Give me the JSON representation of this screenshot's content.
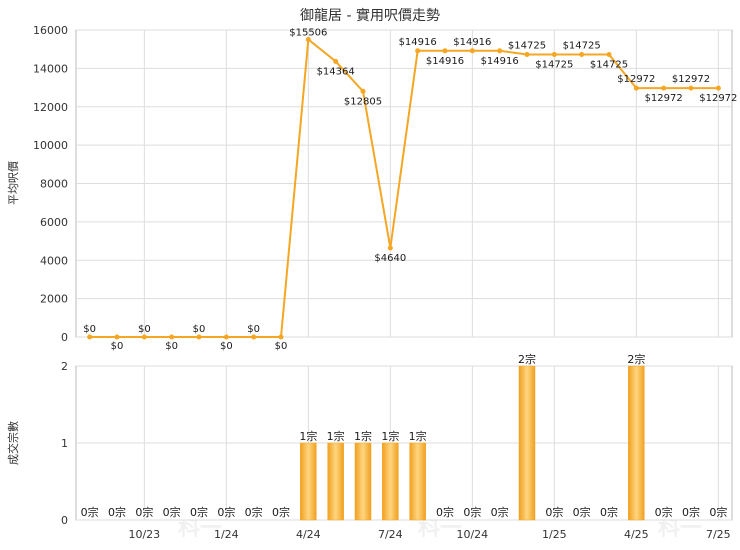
{
  "chart_data": [
    {
      "type": "line",
      "title": "御龍居 - 實用呎價走勢",
      "ylabel": "平均呎價",
      "ylim": [
        0,
        16000
      ],
      "yticks": [
        "0",
        "2000",
        "4000",
        "6000",
        "8000",
        "10000",
        "12000",
        "14000",
        "16000"
      ],
      "grid": true,
      "line_color": "#f5a623",
      "values": [
        0,
        0,
        0,
        0,
        0,
        0,
        0,
        0,
        15506,
        14364,
        12805,
        4640,
        14916,
        14916,
        14916,
        14916,
        14725,
        14725,
        14725,
        14725,
        12972,
        12972,
        12972,
        12972
      ],
      "labels": [
        "$0",
        "$0",
        "$0",
        "$0",
        "$0",
        "$0",
        "$0",
        "$0",
        "$15506",
        "$14364",
        "$12805",
        "$4640",
        "$14916",
        "$14916",
        "$14916",
        "$14916",
        "$14725",
        "$14725",
        "$14725",
        "$14725",
        "$12972",
        "$12972",
        "$12972",
        "$12972"
      ]
    },
    {
      "type": "bar",
      "ylabel": "成交宗數",
      "ylim": [
        0,
        2
      ],
      "yticks": [
        "0",
        "1",
        "2"
      ],
      "grid": true,
      "bar_color": "#f5a623",
      "values": [
        0,
        0,
        0,
        0,
        0,
        0,
        0,
        0,
        1,
        1,
        1,
        1,
        1,
        0,
        0,
        0,
        2,
        0,
        0,
        0,
        2,
        0,
        0,
        0
      ],
      "labels": [
        "0宗",
        "0宗",
        "0宗",
        "0宗",
        "0宗",
        "0宗",
        "0宗",
        "0宗",
        "1宗",
        "1宗",
        "1宗",
        "1宗",
        "1宗",
        "0宗",
        "0宗",
        "0宗",
        "2宗",
        "0宗",
        "0宗",
        "0宗",
        "2宗",
        "0宗",
        "0宗",
        "0宗"
      ],
      "x_tick_labels": [
        {
          "index": 2,
          "label": "10/23"
        },
        {
          "index": 5,
          "label": "1/24"
        },
        {
          "index": 8,
          "label": "4/24"
        },
        {
          "index": 11,
          "label": "7/24"
        },
        {
          "index": 14,
          "label": "10/24"
        },
        {
          "index": 17,
          "label": "1/25"
        },
        {
          "index": 20,
          "label": "4/25"
        },
        {
          "index": 23,
          "label": "7/25"
        }
      ]
    }
  ],
  "watermark": "科一"
}
